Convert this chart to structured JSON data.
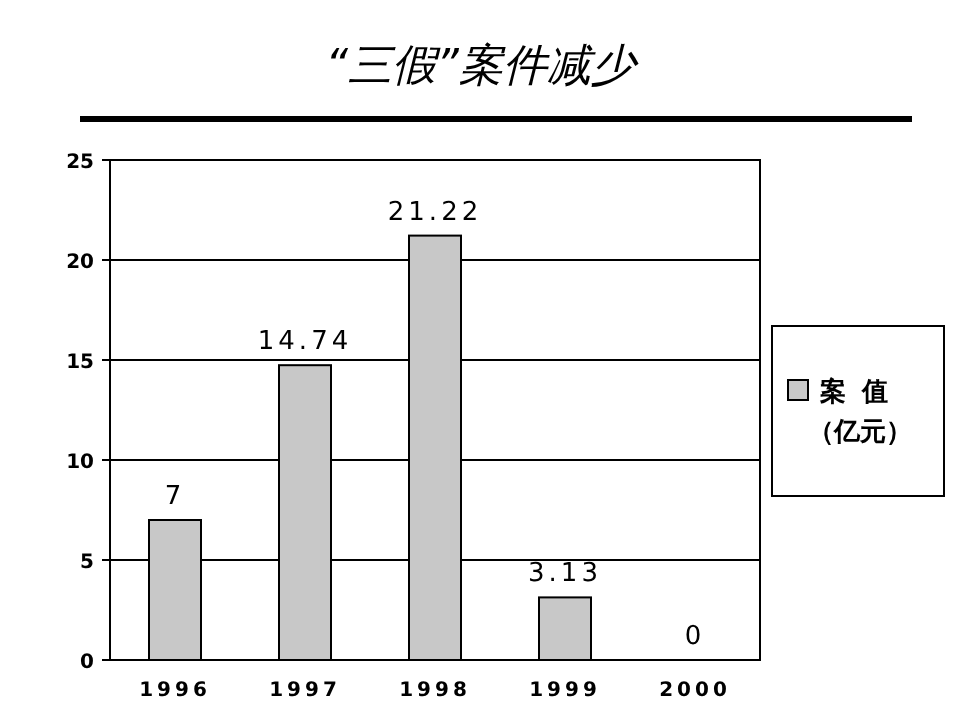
{
  "chart_data": {
    "type": "bar",
    "title": "“三假”案件减少",
    "categories": [
      "1996",
      "1997",
      "1998",
      "1999",
      "2000"
    ],
    "series": [
      {
        "name": "案值（亿元）",
        "color": "#c8c8c8",
        "values": [
          7,
          14.74,
          21.22,
          3.13,
          0
        ]
      }
    ],
    "ylim": [
      0,
      25
    ],
    "yticks": [
      0,
      5,
      10,
      15,
      20,
      25
    ],
    "grid": "y",
    "legend": "right",
    "data_labels": true
  }
}
